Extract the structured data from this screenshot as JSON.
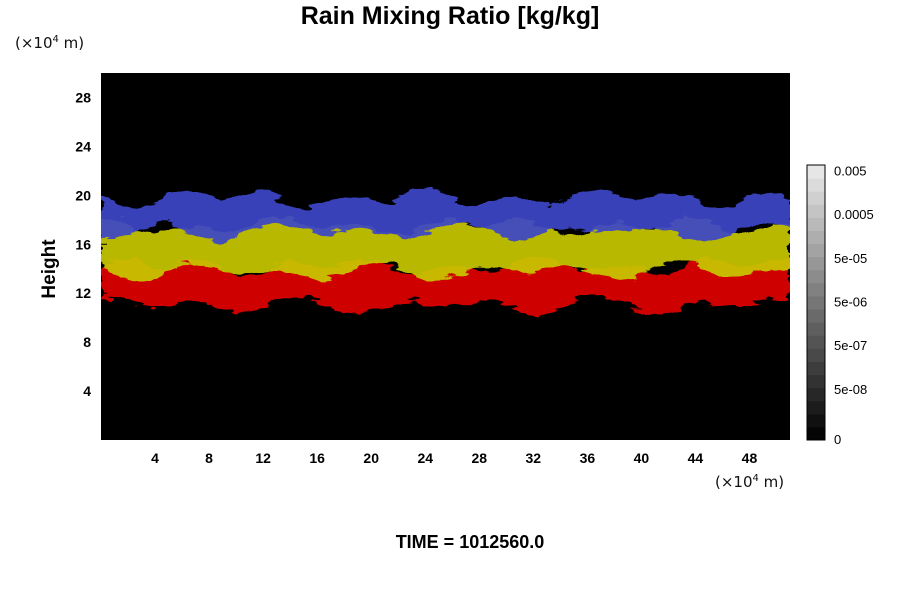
{
  "chart_data": {
    "type": "heatmap",
    "title": "Rain Mixing Ratio [kg/kg]",
    "ylabel": "Height",
    "xunit": {
      "prefix": "(×10",
      "exp": "4",
      "suffix": " m)"
    },
    "yunit": {
      "prefix": "(×10",
      "exp": "4",
      "suffix": " m)"
    },
    "xlim": [
      0,
      51
    ],
    "ylim": [
      0,
      30
    ],
    "x_ticks": [
      4,
      8,
      12,
      16,
      20,
      24,
      28,
      32,
      36,
      40,
      44,
      48
    ],
    "x_tick_labels": [
      "4",
      "8",
      "12",
      "16",
      "20",
      "24",
      "28",
      "32",
      "36",
      "40",
      "44",
      "48"
    ],
    "y_ticks": [
      4,
      8,
      12,
      16,
      20,
      24,
      28
    ],
    "y_tick_labels": [
      "4",
      "8",
      "12",
      "16",
      "20",
      "24",
      "28"
    ],
    "layers": [
      {
        "name": "red",
        "color": "#e00000",
        "y_bottom": 11.0,
        "y_top": 14.2
      },
      {
        "name": "yellow",
        "color": "#c8c800",
        "y_bottom": 13.8,
        "y_top": 17.5
      },
      {
        "name": "blue",
        "color": "#3c46c8",
        "y_bottom": 17.0,
        "y_top": 19.8
      }
    ],
    "colorbar": {
      "levels": 21,
      "tick_labels": [
        "0",
        "5e-08",
        "5e-07",
        "5e-06",
        "5e-05",
        "0.0005",
        "0.005"
      ]
    },
    "footer": "TIME = 1012560.0",
    "background": "#000000"
  }
}
